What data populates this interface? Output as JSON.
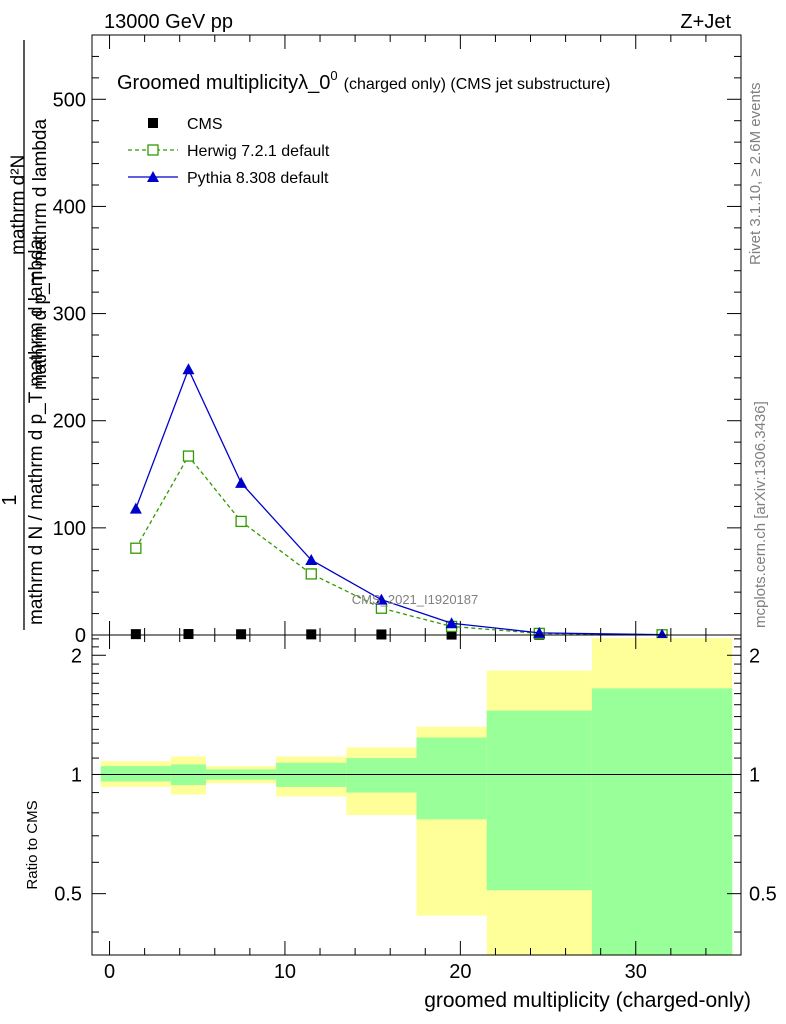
{
  "header": {
    "left": "13000 GeV pp",
    "right": "Z+Jet"
  },
  "side_labels": {
    "rivet": "Rivet 3.1.10, ≥ 2.6M events",
    "mcplots": "mcplots.cern.ch [arXiv:1306.3436]"
  },
  "watermark": "CMS_2021_I1920187",
  "chart_data": [
    {
      "type": "line",
      "title": "Groomed multiplicityλ_0",
      "title_sup": "0",
      "title_suffix": "(charged only) (CMS jet substructure)",
      "ylabel_num": "1",
      "ylabel_den": "mathrm d N / mathrm d p_T mathrm d lambda",
      "ylabel_top": "mathrm d²N",
      "ylabel_bottom": "mathrm d p_T mathrm d lambda",
      "xlim": [
        -1,
        36
      ],
      "ylim": [
        0,
        560
      ],
      "yticks": [
        0,
        100,
        200,
        300,
        400,
        500
      ],
      "legend_position": "top-left",
      "legend": [
        "CMS",
        "Herwig 7.2.1 default",
        "Pythia 8.308 default"
      ],
      "series": [
        {
          "name": "CMS",
          "color": "#000000",
          "marker": "square-filled",
          "x": [
            1.5,
            4.5,
            7.5,
            11.5,
            15.5,
            19.5,
            24.5,
            31.5
          ],
          "y": [
            0.8,
            0.9,
            0.7,
            0.6,
            0.5,
            0.4,
            0.3,
            0.2
          ]
        },
        {
          "name": "Herwig 7.2.1 default",
          "color": "#339900",
          "marker": "square-open",
          "line": "dashed",
          "x": [
            1.5,
            4.5,
            7.5,
            11.5,
            15.5,
            19.5,
            24.5,
            31.5
          ],
          "y": [
            81,
            167,
            106,
            57,
            25,
            8,
            1.5,
            0.2
          ]
        },
        {
          "name": "Pythia 8.308 default",
          "color": "#0000cc",
          "marker": "triangle-filled",
          "line": "solid",
          "x": [
            1.5,
            4.5,
            7.5,
            11.5,
            15.5,
            19.5,
            24.5,
            31.5
          ],
          "y": [
            118,
            248,
            142,
            70,
            33,
            11,
            2,
            0.3
          ]
        }
      ]
    },
    {
      "type": "area",
      "ylabel": "Ratio to CMS",
      "xlabel": "groomed multiplicity (charged-only)",
      "xlim": [
        -1,
        36
      ],
      "ylim": [
        0.35,
        2.25
      ],
      "xticks": [
        0,
        10,
        20,
        30
      ],
      "yticks": [
        0.5,
        1,
        2
      ],
      "ytick_labels": [
        "0.5",
        "1",
        "2"
      ],
      "reference_line": 1,
      "bands": {
        "edges": [
          -0.5,
          3.5,
          5.5,
          9.5,
          13.5,
          17.5,
          21.5,
          27.5,
          35.5
        ],
        "outer_low": [
          0.93,
          0.89,
          0.95,
          0.88,
          0.79,
          0.44,
          0.35,
          0.35
        ],
        "outer_high": [
          1.08,
          1.11,
          1.05,
          1.11,
          1.17,
          1.32,
          1.83,
          2.21
        ],
        "inner_low": [
          0.96,
          0.94,
          0.97,
          0.93,
          0.9,
          0.77,
          0.51,
          0.35
        ],
        "inner_high": [
          1.05,
          1.06,
          1.03,
          1.07,
          1.1,
          1.24,
          1.45,
          1.65
        ],
        "outer_color": "#ffff99",
        "inner_color": "#99ff99"
      }
    }
  ]
}
